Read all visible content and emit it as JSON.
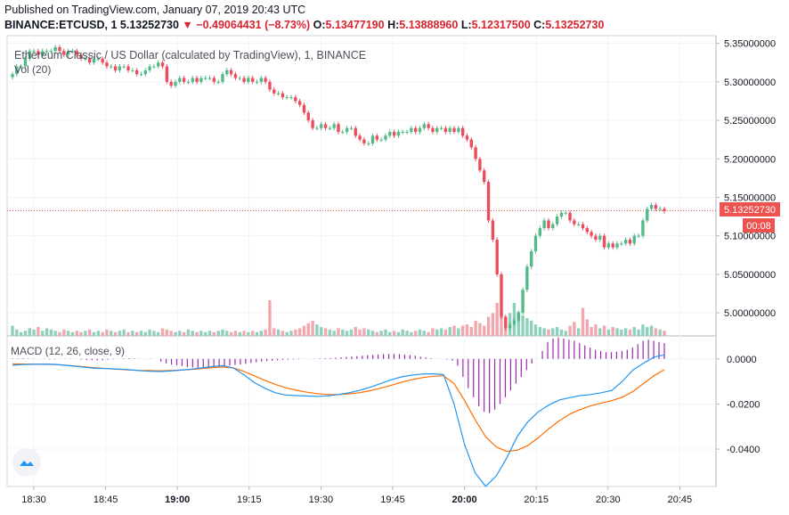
{
  "header": {
    "published": "Published on TradingView.com, January 07, 2019 20:43 UTC",
    "symbol": "BINANCE:ETCUSD, 1",
    "last": "5.13252730",
    "change": "−0.49064431 (−8.73%)",
    "o_label": "O:",
    "o_value": "5.13477190",
    "h_label": "H:",
    "h_value": "5.13888960",
    "l_label": "L:",
    "l_value": "5.12317500",
    "c_label": "C:",
    "c_value": "5.13252730"
  },
  "main_pane": {
    "title": "Ethereum Classic / US Dollar (calculated by TradingView), 1, BINANCE",
    "volume_label": "Vol (20)",
    "price_label": "5.13252730",
    "countdown_label": "00:08"
  },
  "macd_pane": {
    "title": "MACD (12, 26, close, 9)"
  },
  "colors": {
    "up": "#53b987",
    "down": "#eb4d5c",
    "macd": "#2196f3",
    "signal": "#ff6d00",
    "hist": "#9c27b0",
    "vol_up": "#8fd0bd",
    "vol_down": "#f2a7ae",
    "price_tag": "#ef5350"
  },
  "chart_data": [
    {
      "type": "candlestick",
      "title": "Ethereum Classic / US Dollar (calculated by TradingView), 1, BINANCE",
      "y_tick_labels": [
        "5.35000000",
        "5.30000000",
        "5.25000000",
        "5.20000000",
        "5.15000000",
        "5.10000000",
        "5.05000000",
        "5.00000000"
      ],
      "ylim": [
        4.97,
        5.36
      ],
      "x_tick_labels": [
        "18:30",
        "18:45",
        "19:00",
        "19:15",
        "19:30",
        "19:45",
        "20:00",
        "20:15",
        "20:30",
        "20:45"
      ],
      "last_price": 5.1325273,
      "closes": [
        5.31,
        5.32,
        5.32,
        5.33,
        5.34,
        5.34,
        5.335,
        5.34,
        5.34,
        5.34,
        5.345,
        5.34,
        5.335,
        5.34,
        5.34,
        5.335,
        5.33,
        5.33,
        5.325,
        5.33,
        5.33,
        5.325,
        5.32,
        5.32,
        5.315,
        5.32,
        5.32,
        5.315,
        5.315,
        5.31,
        5.31,
        5.315,
        5.32,
        5.32,
        5.325,
        5.32,
        5.3,
        5.295,
        5.3,
        5.305,
        5.3,
        5.3,
        5.305,
        5.3,
        5.305,
        5.305,
        5.305,
        5.3,
        5.3,
        5.31,
        5.315,
        5.31,
        5.305,
        5.305,
        5.3,
        5.305,
        5.3,
        5.3,
        5.305,
        5.3,
        5.29,
        5.285,
        5.285,
        5.28,
        5.28,
        5.28,
        5.275,
        5.27,
        5.26,
        5.25,
        5.24,
        5.24,
        5.245,
        5.24,
        5.24,
        5.245,
        5.235,
        5.235,
        5.24,
        5.24,
        5.23,
        5.225,
        5.22,
        5.22,
        5.23,
        5.225,
        5.225,
        5.23,
        5.235,
        5.23,
        5.235,
        5.235,
        5.235,
        5.24,
        5.235,
        5.24,
        5.245,
        5.24,
        5.235,
        5.24,
        5.24,
        5.235,
        5.24,
        5.235,
        5.24,
        5.23,
        5.225,
        5.215,
        5.2,
        5.185,
        5.17,
        5.12,
        5.095,
        5.05,
        4.995,
        4.98,
        4.985,
        4.99,
        5.0,
        5.03,
        5.06,
        5.08,
        5.1,
        5.11,
        5.12,
        5.11,
        5.115,
        5.125,
        5.13,
        5.13,
        5.12,
        5.115,
        5.115,
        5.11,
        5.105,
        5.1,
        5.095,
        5.1,
        5.085,
        5.09,
        5.085,
        5.09,
        5.09,
        5.095,
        5.09,
        5.1,
        5.1,
        5.12,
        5.135,
        5.14,
        5.135,
        5.135,
        5.132
      ],
      "volumes": [
        0.8,
        0.5,
        0.3,
        0.4,
        0.6,
        0.5,
        0.7,
        0.4,
        0.6,
        0.5,
        0.4,
        0.3,
        0.5,
        0.4,
        0.3,
        0.4,
        0.3,
        0.4,
        0.5,
        0.3,
        0.4,
        0.3,
        0.5,
        0.4,
        0.3,
        0.4,
        0.5,
        0.3,
        0.4,
        0.3,
        0.4,
        0.3,
        0.5,
        0.4,
        0.3,
        0.6,
        0.5,
        0.4,
        0.3,
        0.4,
        0.3,
        0.5,
        0.4,
        0.3,
        0.4,
        0.3,
        0.4,
        0.3,
        0.4,
        0.5,
        0.4,
        0.3,
        0.4,
        0.3,
        0.4,
        0.3,
        0.4,
        0.3,
        0.4,
        0.5,
        2.8,
        0.6,
        0.5,
        0.4,
        0.3,
        0.4,
        0.5,
        0.6,
        0.8,
        1.0,
        1.2,
        0.9,
        0.7,
        0.6,
        0.5,
        0.4,
        0.6,
        0.5,
        0.4,
        0.5,
        0.7,
        0.5,
        0.6,
        0.5,
        0.4,
        0.3,
        0.4,
        0.5,
        0.3,
        0.4,
        0.3,
        0.5,
        0.4,
        0.3,
        0.4,
        0.5,
        0.4,
        0.3,
        0.6,
        0.5,
        0.6,
        0.5,
        0.7,
        0.8,
        0.6,
        0.8,
        0.9,
        0.7,
        1.2,
        1.0,
        0.8,
        1.5,
        1.8,
        2.6,
        2.0,
        1.5,
        1.8,
        2.6,
        1.9,
        1.6,
        1.4,
        1.2,
        0.9,
        0.7,
        0.6,
        0.5,
        0.6,
        0.7,
        0.5,
        0.4,
        0.8,
        1.1,
        0.6,
        2.2,
        1.3,
        0.7,
        0.9,
        0.6,
        0.8,
        0.5,
        0.7,
        0.6,
        0.5,
        0.6,
        0.5,
        0.7,
        0.5,
        0.9,
        0.7,
        0.8,
        0.6,
        0.5,
        0.4
      ]
    },
    {
      "type": "line",
      "title": "MACD (12, 26, close, 9)",
      "y_tick_labels": [
        "0.0000",
        "-0.0200",
        "-0.0400"
      ],
      "ylim": [
        -0.055,
        0.009
      ],
      "macd": [
        -0.0028,
        -0.0025,
        -0.0024,
        -0.0023,
        -0.0024,
        -0.0028,
        -0.0033,
        -0.0038,
        -0.0042,
        -0.0043,
        -0.0045,
        -0.0048,
        -0.0052,
        -0.0055,
        -0.0056,
        -0.0054,
        -0.005,
        -0.0046,
        -0.004,
        -0.0034,
        -0.003,
        -0.004,
        -0.007,
        -0.0105,
        -0.013,
        -0.015,
        -0.016,
        -0.0163,
        -0.0165,
        -0.0166,
        -0.0164,
        -0.0158,
        -0.015,
        -0.014,
        -0.0126,
        -0.011,
        -0.0093,
        -0.008,
        -0.0072,
        -0.0067,
        -0.0066,
        -0.007,
        -0.02,
        -0.038,
        -0.0505,
        -0.0565,
        -0.052,
        -0.044,
        -0.0345,
        -0.028,
        -0.0235,
        -0.0205,
        -0.0182,
        -0.0172,
        -0.0163,
        -0.0158,
        -0.015,
        -0.014,
        -0.01,
        -0.005,
        -0.002,
        0.0008,
        0.0018
      ],
      "signal": [
        -0.0022,
        -0.0023,
        -0.0023,
        -0.0024,
        -0.0025,
        -0.0028,
        -0.0032,
        -0.0036,
        -0.004,
        -0.0043,
        -0.0046,
        -0.0049,
        -0.0051,
        -0.0052,
        -0.0053,
        -0.0052,
        -0.005,
        -0.0047,
        -0.0043,
        -0.0039,
        -0.0036,
        -0.004,
        -0.0055,
        -0.0075,
        -0.0095,
        -0.0113,
        -0.0128,
        -0.0139,
        -0.0148,
        -0.0154,
        -0.0158,
        -0.0158,
        -0.0155,
        -0.015,
        -0.0141,
        -0.013,
        -0.0118,
        -0.0104,
        -0.0092,
        -0.0083,
        -0.0077,
        -0.0075,
        -0.011,
        -0.0185,
        -0.027,
        -0.0345,
        -0.039,
        -0.041,
        -0.0405,
        -0.0385,
        -0.035,
        -0.031,
        -0.0275,
        -0.0245,
        -0.0225,
        -0.0208,
        -0.0196,
        -0.0185,
        -0.017,
        -0.0145,
        -0.011,
        -0.0075,
        -0.0048
      ],
      "histogram": [
        0.0002,
        0.0002,
        0.0003,
        0.0002,
        0.0001,
        0.0,
        -0.0001,
        -0.0002,
        -0.0002,
        -0.0001,
        -0.0001,
        -0.0001,
        -0.0001,
        -0.0003,
        -0.0005,
        -0.0006,
        -0.0007,
        -0.0006,
        -0.0004,
        -0.0002,
        0.0001,
        0.0002,
        0.0003,
        0.0002,
        0.0001,
        0.0,
        -0.0001,
        0.0,
        -0.0012,
        -0.002,
        -0.0026,
        -0.0028,
        -0.0032,
        -0.0036,
        -0.0038,
        -0.004,
        -0.0041,
        -0.0042,
        -0.004,
        -0.0037,
        -0.0034,
        -0.003,
        -0.0027,
        -0.0025,
        -0.0022,
        -0.0018,
        -0.0015,
        -0.0012,
        -0.001,
        -0.0008,
        -0.0006,
        -0.0005,
        -0.0004,
        -0.0003,
        -0.0002,
        -0.0001,
        0.0,
        0.0001,
        0.0002,
        0.0003,
        0.0004,
        0.0005,
        0.0007,
        0.0009,
        0.001,
        0.0012,
        0.0014,
        0.0016,
        0.0018,
        0.002,
        0.0021,
        0.0022,
        0.0022,
        0.0021,
        0.0019,
        0.0017,
        0.0014,
        0.001,
        0.0006,
        0.0003,
        0.0001,
        0.0,
        -0.0003,
        -0.0008,
        -0.003,
        -0.008,
        -0.013,
        -0.017,
        -0.021,
        -0.0235,
        -0.024,
        -0.0225,
        -0.02,
        -0.017,
        -0.014,
        -0.011,
        -0.008,
        -0.005,
        -0.002,
        0.0,
        0.0035,
        0.0075,
        0.009,
        0.0095,
        0.009,
        0.0085,
        0.008,
        0.007,
        0.006,
        0.005,
        0.004,
        0.0035,
        0.003,
        0.003,
        0.0032,
        0.0035,
        0.004,
        0.005,
        0.0065,
        0.008,
        0.0085,
        0.008,
        0.0075,
        0.007
      ]
    }
  ]
}
